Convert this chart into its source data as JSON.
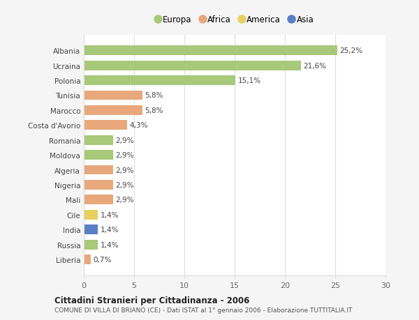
{
  "countries": [
    "Albania",
    "Ucraina",
    "Polonia",
    "Tunisia",
    "Marocco",
    "Costa d'Avorio",
    "Romania",
    "Moldova",
    "Algeria",
    "Nigeria",
    "Mali",
    "Cile",
    "India",
    "Russia",
    "Liberia"
  ],
  "values": [
    25.2,
    21.6,
    15.1,
    5.8,
    5.8,
    4.3,
    2.9,
    2.9,
    2.9,
    2.9,
    2.9,
    1.4,
    1.4,
    1.4,
    0.7
  ],
  "labels": [
    "25,2%",
    "21,6%",
    "15,1%",
    "5,8%",
    "5,8%",
    "4,3%",
    "2,9%",
    "2,9%",
    "2,9%",
    "2,9%",
    "2,9%",
    "1,4%",
    "1,4%",
    "1,4%",
    "0,7%"
  ],
  "continents": [
    "Europa",
    "Europa",
    "Europa",
    "Africa",
    "Africa",
    "Africa",
    "Europa",
    "Europa",
    "Africa",
    "Africa",
    "Africa",
    "America",
    "Asia",
    "Europa",
    "Africa"
  ],
  "colors": {
    "Europa": "#a8c87a",
    "Africa": "#e8a87c",
    "America": "#e8d060",
    "Asia": "#5b7fc4"
  },
  "legend_items": [
    "Europa",
    "Africa",
    "America",
    "Asia"
  ],
  "title": "Cittadini Stranieri per Cittadinanza - 2006",
  "subtitle": "COMUNE DI VILLA DI BRIANO (CE) - Dati ISTAT al 1° gennaio 2006 - Elaborazione TUTTITALIA.IT",
  "xlim": [
    0,
    30
  ],
  "xticks": [
    0,
    5,
    10,
    15,
    20,
    25,
    30
  ],
  "background_color": "#f5f5f5",
  "bar_background": "#ffffff",
  "grid_color": "#dddddd"
}
